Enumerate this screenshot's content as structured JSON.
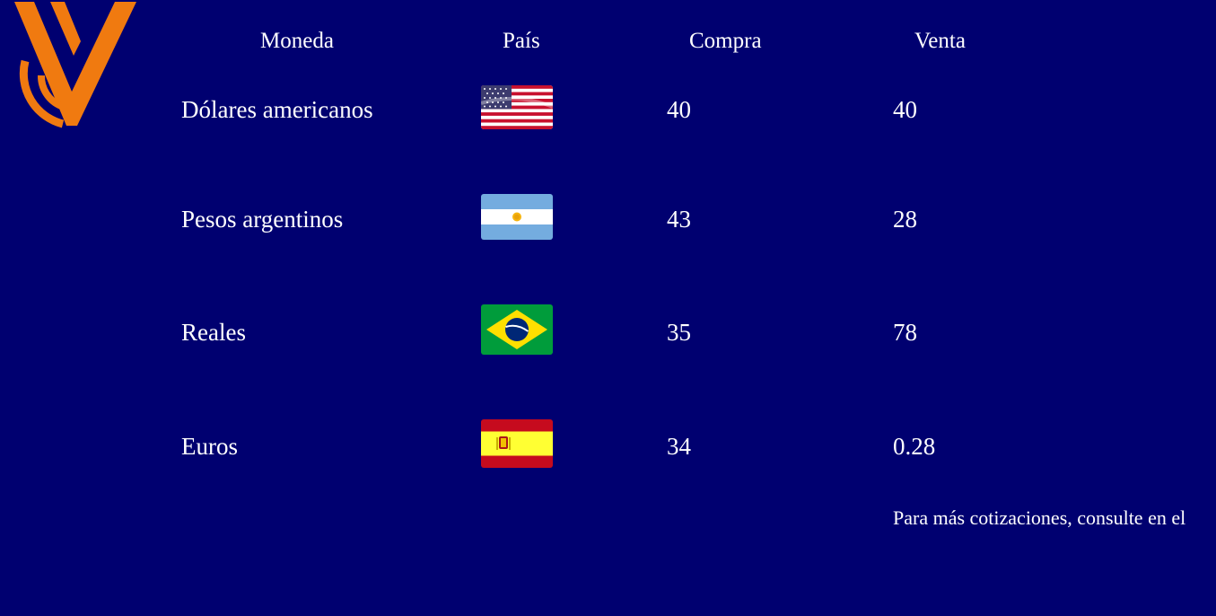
{
  "colors": {
    "background": "#000070",
    "text": "#ffffff",
    "logo_orange": "#f07a10"
  },
  "logo": {
    "icon": "cv-logo-icon"
  },
  "table": {
    "headers": {
      "currency": "Moneda",
      "country": "País",
      "buy": "Compra",
      "sell": "Venta"
    },
    "rows": [
      {
        "currency": "Dólares americanos",
        "flag": "usa-flag-icon",
        "buy": "40",
        "sell": "40"
      },
      {
        "currency": "Pesos argentinos",
        "flag": "argentina-flag-icon",
        "buy": "43",
        "sell": "28"
      },
      {
        "currency": "Reales",
        "flag": "brazil-flag-icon",
        "buy": "35",
        "sell": "78"
      },
      {
        "currency": "Euros",
        "flag": "spain-flag-icon",
        "buy": "34",
        "sell": "0.28"
      }
    ]
  },
  "footer": {
    "note": "Para más cotizaciones, consulte en el"
  }
}
